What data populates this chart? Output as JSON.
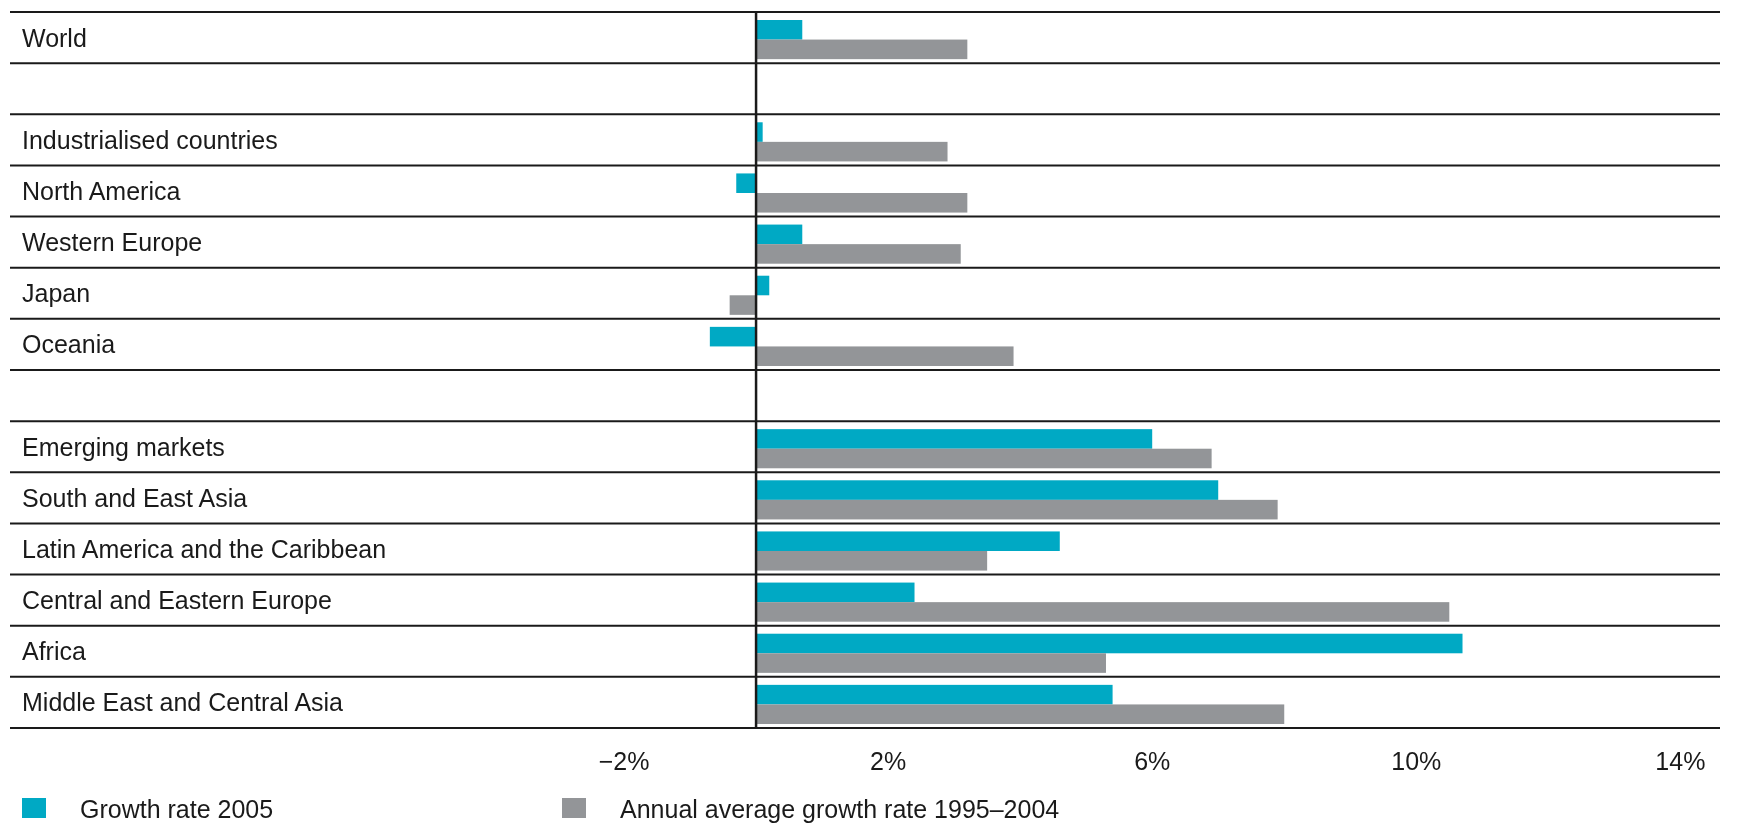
{
  "chart_data": {
    "type": "bar",
    "orientation": "horizontal",
    "categories": [
      "World",
      null,
      "Industrialised countries",
      "North America",
      "Western Europe",
      "Japan",
      "Oceania",
      null,
      "Emerging markets",
      "South and East Asia",
      "Latin America and the Caribbean",
      "Central and Eastern Europe",
      "Africa",
      "Middle East and Central Asia"
    ],
    "series": [
      {
        "name": "Growth rate 2005",
        "color": "#00a9c4",
        "values": [
          0.7,
          null,
          0.1,
          -0.3,
          0.7,
          0.2,
          -0.7,
          null,
          6.0,
          7.0,
          4.6,
          2.4,
          10.7,
          5.4
        ]
      },
      {
        "name": "Annual average growth rate 1995–2004",
        "color": "#939598",
        "values": [
          3.2,
          null,
          2.9,
          3.2,
          3.1,
          -0.4,
          3.9,
          null,
          6.9,
          7.9,
          3.5,
          10.5,
          5.3,
          8.0
        ]
      }
    ],
    "xlim": [
      -11.3,
      14.6
    ],
    "xticks": [
      {
        "value": -2,
        "label": "−2%"
      },
      {
        "value": 2,
        "label": "2%"
      },
      {
        "value": 6,
        "label": "6%"
      },
      {
        "value": 10,
        "label": "10%"
      },
      {
        "value": 14,
        "label": "14%"
      }
    ],
    "legend": "bottom left"
  }
}
